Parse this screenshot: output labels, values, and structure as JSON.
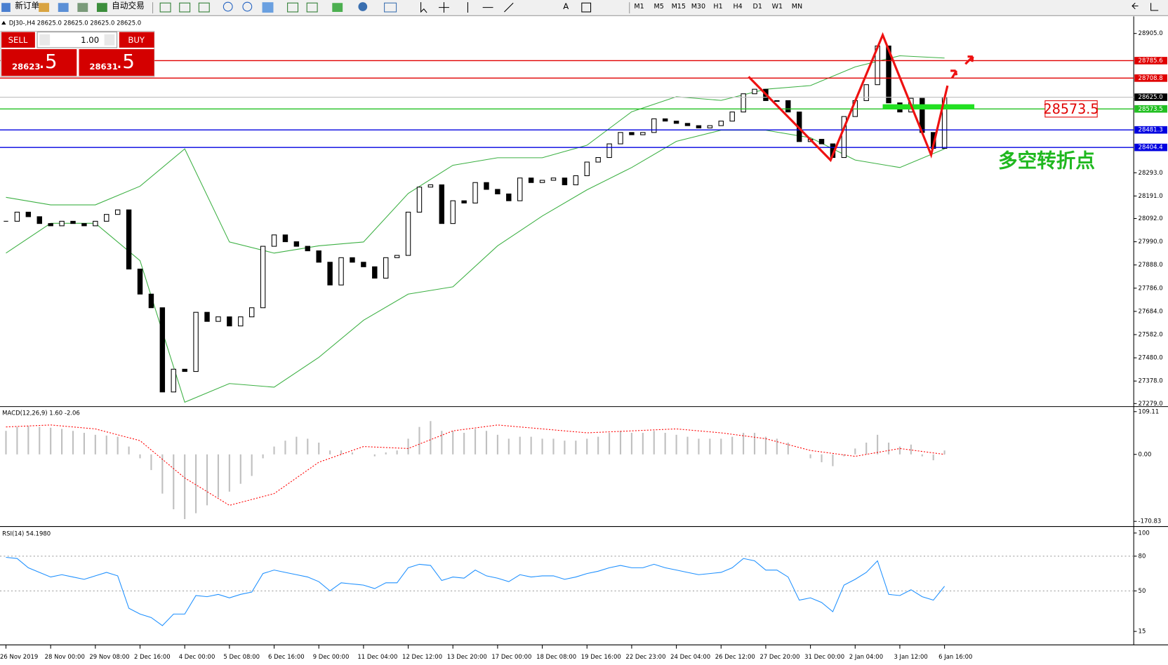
{
  "toolbar": {
    "new_order": "新订单",
    "auto_trading": "自动交易",
    "timeframes": [
      "M1",
      "M5",
      "M15",
      "M30",
      "H1",
      "H4",
      "D1",
      "W1",
      "MN"
    ]
  },
  "trade_panel": {
    "sell": "SELL",
    "buy": "BUY",
    "lot": "1.00",
    "bid_main": "28623",
    "bid_pips": ".5",
    "ask_main": "28631",
    "ask_pips": ".5"
  },
  "chart_data": [
    {
      "type": "candlestick",
      "title": "DJ30-,H4 28625.0 28625.0 28625.0 28625.0",
      "categories": [
        "26 Nov 2019",
        null,
        null,
        null,
        "28 Nov 00:00",
        null,
        null,
        null,
        "29 Nov 08:00",
        null,
        null,
        null,
        "2 Dec 16:00",
        null,
        null,
        null,
        "4 Dec 00:00",
        null,
        null,
        null,
        "5 Dec 08:00",
        null,
        null,
        null,
        "6 Dec 16:00",
        null,
        null,
        null,
        "9 Dec 00:00",
        null,
        null,
        null,
        "11 Dec 04:00",
        null,
        null,
        null,
        "12 Dec 12:00",
        null,
        null,
        null,
        "13 Dec 20:00",
        null,
        null,
        null,
        "17 Dec 00:00",
        null,
        null,
        null,
        "18 Dec 08:00",
        null,
        null,
        null,
        "19 Dec 16:00",
        null,
        null,
        null,
        "22 Dec 23:00",
        null,
        null,
        null,
        "24 Dec 04:00",
        null,
        null,
        null,
        "26 Dec 12:00",
        null,
        null,
        null,
        "27 Dec 20:00",
        null,
        null,
        null,
        "31 Dec 00:00",
        null,
        null,
        null,
        "2 Jan 04:00",
        null,
        null,
        null,
        "3 Jan 12:00",
        null,
        null,
        null,
        "6 Jan 16:00"
      ],
      "close": [
        28080,
        28120,
        28100,
        28070,
        28060,
        28080,
        28070,
        28060,
        28080,
        28110,
        28130,
        27870,
        27760,
        27700,
        27330,
        27430,
        27420,
        27680,
        27640,
        27660,
        27620,
        27660,
        27700,
        27970,
        28020,
        27990,
        27970,
        27950,
        27900,
        27800,
        27920,
        27900,
        27880,
        27830,
        27920,
        27930,
        28120,
        28230,
        28240,
        28070,
        28170,
        28160,
        28250,
        28220,
        28200,
        28170,
        28270,
        28250,
        28260,
        28270,
        28240,
        28280,
        28340,
        28360,
        28420,
        28470,
        28460,
        28470,
        28530,
        28520,
        28510,
        28500,
        28490,
        28500,
        28520,
        28560,
        28640,
        28660,
        28610,
        28610,
        28560,
        28430,
        28440,
        28420,
        28360,
        28540,
        28610,
        28680,
        28850,
        28600,
        28560,
        28620,
        28470,
        28400,
        28625
      ],
      "band_x": [
        0,
        4,
        8,
        12,
        16,
        20,
        24,
        28,
        32,
        36,
        40,
        44,
        48,
        52,
        56,
        60,
        64,
        68,
        72,
        76,
        80,
        84
      ],
      "bands": [
        {
          "color": "#3cb043",
          "values": [
            28185,
            28152,
            28152,
            28234,
            28398,
            27989,
            27940,
            27972,
            27989,
            28202,
            28326,
            28359,
            28359,
            28414,
            28561,
            28627,
            28611,
            28660,
            28676,
            28758,
            28807,
            28797
          ]
        },
        {
          "color": "#3cb043",
          "values": [
            27940,
            28071,
            28071,
            27907,
            27285,
            27367,
            27351,
            27482,
            27645,
            27760,
            27792,
            27972,
            28103,
            28218,
            28316,
            28431,
            28480,
            28480,
            28447,
            28349,
            28316,
            28398
          ]
        }
      ],
      "ylim": [
        27269,
        28980
      ],
      "yticks": [
        {
          "value": 28905,
          "label": "28905.0"
        },
        {
          "value": 28293,
          "label": "28293.0"
        },
        {
          "value": 28191,
          "label": "28191.0"
        },
        {
          "value": 28092,
          "label": "28092.0"
        },
        {
          "value": 27990,
          "label": "27990.0"
        },
        {
          "value": 27888,
          "label": "27888.0"
        },
        {
          "value": 27786,
          "label": "27786.0"
        },
        {
          "value": 27684,
          "label": "27684.0"
        },
        {
          "value": 27582,
          "label": "27582.0"
        },
        {
          "value": 27480,
          "label": "27480.0"
        },
        {
          "value": 27378,
          "label": "27378.0"
        },
        {
          "value": 27279,
          "label": "27279.0"
        }
      ],
      "levels": [
        {
          "value": 28785.6,
          "color": "#e00000"
        },
        {
          "value": 28708.8,
          "color": "#e00000"
        },
        {
          "value": 28573.5,
          "color": "#22c022"
        },
        {
          "value": 28481.3,
          "color": "#0000e0"
        },
        {
          "value": 28404.4,
          "color": "#0000e0"
        }
      ],
      "current_price": {
        "value": 28625,
        "label": "28625.0"
      },
      "annotation": "多空转折点"
    },
    {
      "type": "macd",
      "title": "MACD(12,26,9) 1.60 -2.06",
      "values": [
        60,
        70,
        72,
        70,
        68,
        65,
        60,
        55,
        50,
        48,
        45,
        20,
        -10,
        -40,
        -100,
        -140,
        -165,
        -150,
        -130,
        -110,
        -95,
        -75,
        -55,
        -10,
        20,
        35,
        45,
        40,
        30,
        10,
        10,
        5,
        0,
        -5,
        5,
        10,
        40,
        70,
        85,
        60,
        60,
        55,
        65,
        60,
        50,
        40,
        45,
        45,
        40,
        40,
        35,
        35,
        40,
        45,
        55,
        60,
        55,
        55,
        60,
        55,
        50,
        45,
        40,
        40,
        40,
        45,
        55,
        55,
        45,
        40,
        30,
        0,
        -10,
        -20,
        -30,
        -5,
        15,
        30,
        50,
        30,
        20,
        25,
        -5,
        -15,
        10
      ],
      "color": "#c0c0c0",
      "signal": {
        "x": [
          0,
          4,
          8,
          12,
          16,
          20,
          24,
          28,
          32,
          36,
          40,
          44,
          48,
          52,
          56,
          60,
          64,
          68,
          72,
          76,
          80,
          84
        ],
        "values": [
          70,
          75,
          65,
          35,
          -60,
          -130,
          -100,
          -20,
          20,
          15,
          60,
          75,
          65,
          55,
          60,
          65,
          55,
          40,
          10,
          -5,
          15,
          0
        ],
        "color": "#ff0000"
      },
      "ylim": [
        -182,
        120
      ],
      "yticks": [
        109.11,
        {
          "value": 0,
          "label": "0.00"
        },
        -170.83
      ]
    },
    {
      "type": "line",
      "title": "RSI(14) 54.1980",
      "values": [
        79,
        78,
        70,
        66,
        62,
        64,
        62,
        60,
        63,
        66,
        63,
        35,
        30,
        27,
        20,
        30,
        30,
        46,
        45,
        47,
        44,
        47,
        49,
        65,
        68,
        66,
        64,
        62,
        58,
        50,
        57,
        56,
        55,
        52,
        57,
        57,
        70,
        73,
        72,
        59,
        62,
        61,
        68,
        63,
        61,
        58,
        64,
        62,
        63,
        63,
        60,
        62,
        65,
        67,
        70,
        72,
        70,
        70,
        73,
        70,
        68,
        66,
        64,
        65,
        66,
        70,
        78,
        76,
        68,
        68,
        62,
        42,
        44,
        40,
        32,
        55,
        60,
        66,
        76,
        47,
        46,
        51,
        45,
        42,
        54
      ],
      "color": "#1e90ff",
      "ylim": [
        4,
        105
      ],
      "yticks": [
        15,
        50,
        80,
        100
      ],
      "levels": [
        80,
        50
      ]
    }
  ]
}
